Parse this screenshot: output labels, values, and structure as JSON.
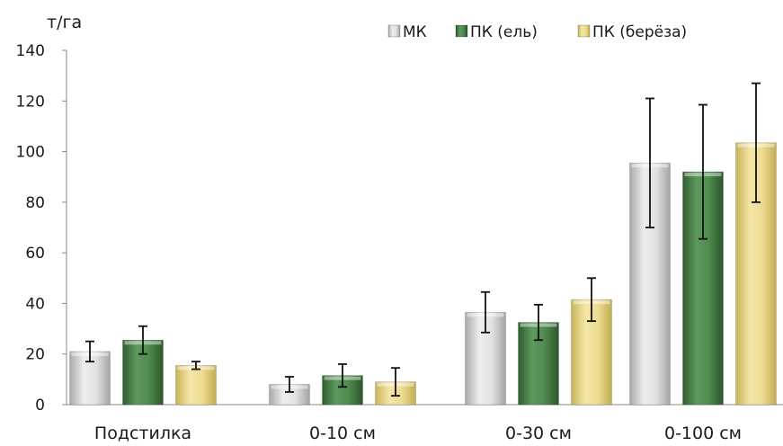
{
  "chart_data": {
    "type": "bar",
    "title": "",
    "ylabel": "т/га",
    "xlabel": "",
    "ylim": [
      0,
      140
    ],
    "yticks": [
      0,
      20,
      40,
      60,
      80,
      100,
      120,
      140
    ],
    "grid": false,
    "legend_position": "top-right",
    "categories": [
      "Подстилка",
      "0-10 см",
      "0-30 см",
      "0-100 см"
    ],
    "series": [
      {
        "name": "МК",
        "color": "#c8c8c8",
        "values": [
          21,
          8,
          36.5,
          95.5
        ],
        "err": [
          4,
          3,
          8,
          25.5
        ]
      },
      {
        "name": "ПК (ель)",
        "color": "#3f7a3f",
        "values": [
          25.5,
          11.5,
          32.5,
          92
        ],
        "err": [
          5.5,
          4.5,
          7,
          26.5
        ]
      },
      {
        "name": "ПК (берёза)",
        "color": "#e6d27a",
        "values": [
          15.5,
          9,
          41.5,
          103.5
        ],
        "err": [
          1.5,
          5.5,
          8.5,
          23.5
        ]
      }
    ]
  }
}
